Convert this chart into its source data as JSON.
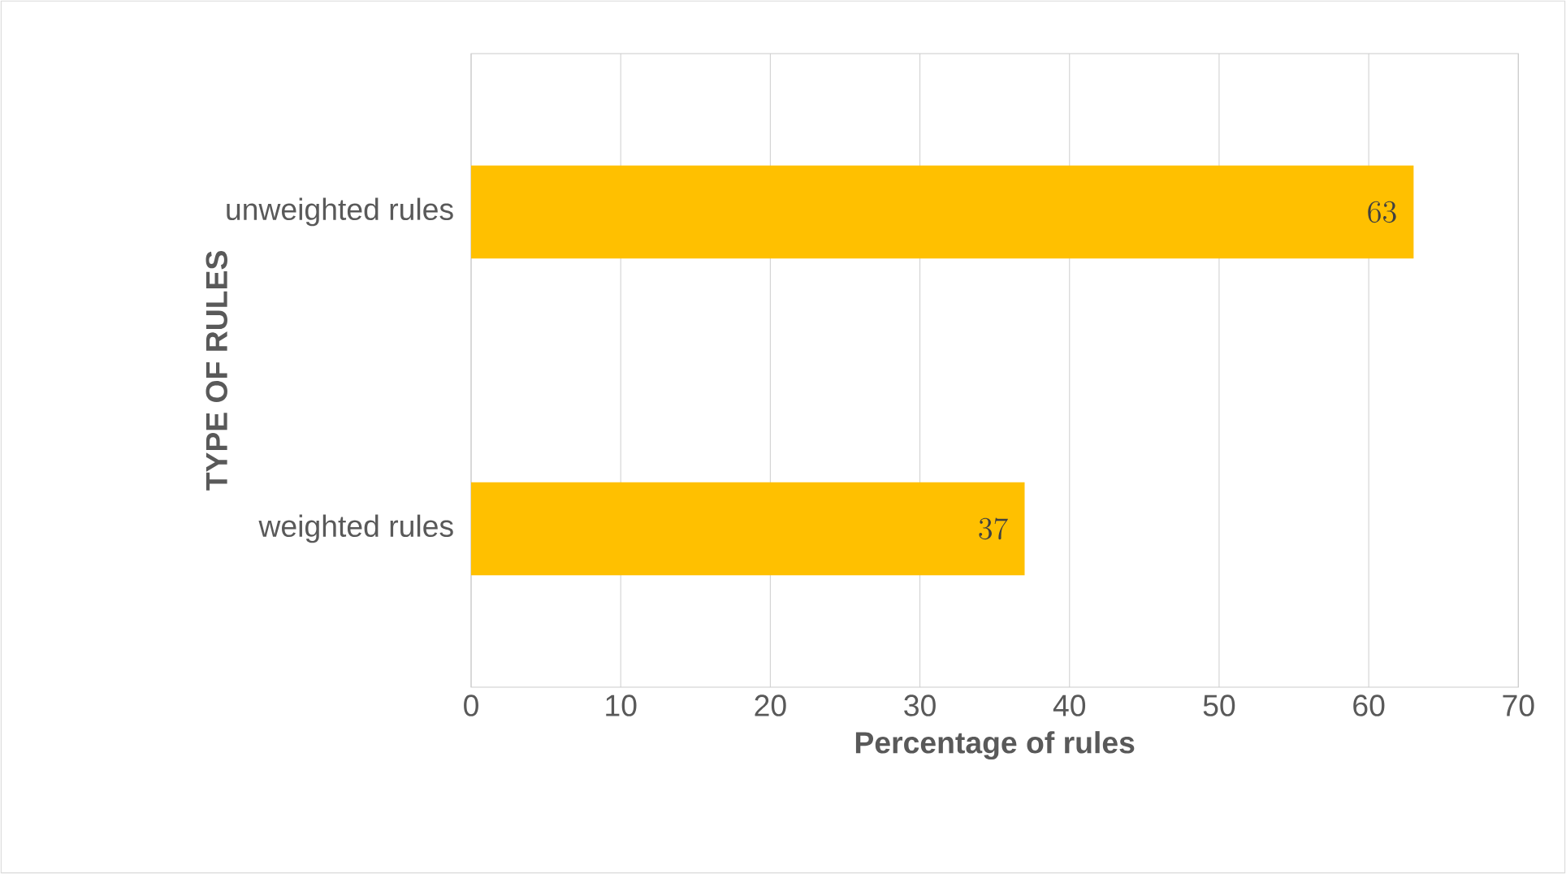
{
  "chart_data": {
    "type": "bar",
    "orientation": "horizontal",
    "xlabel": "Percentage of rules",
    "ylabel": "TYPE OF RULES",
    "categories": [
      "unweighted rules",
      "weighted rules"
    ],
    "values": [
      63,
      37
    ],
    "color": "#ffc000",
    "xlim": [
      0,
      70
    ],
    "xticks": [
      0,
      10,
      20,
      30,
      40,
      50,
      60,
      70
    ],
    "grid": "x",
    "data_labels": true
  }
}
